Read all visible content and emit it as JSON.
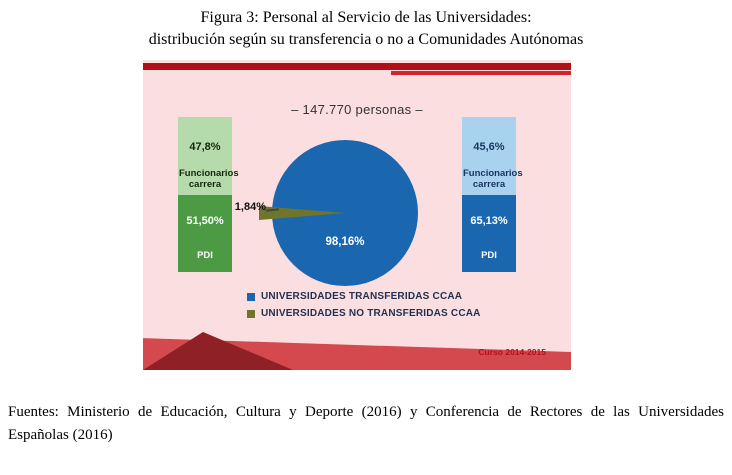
{
  "page": {
    "title_line1": "Figura 3: Personal al Servicio de las Universidades:",
    "title_line2": "distribución según su transferencia o no a Comunidades Autónomas",
    "caption": "Fuentes: Ministerio de Educación, Cultura y Deporte (2016) y Conferencia de Rectores de las Universidades Españolas (2016)"
  },
  "chart_data": {
    "type": "pie",
    "title": "Personal al Servicio de las Universidades: distribución según su transferencia o no a Comunidades Autónomas",
    "total_label": "– 147.770 personas –",
    "legend_position": "bottom",
    "slices": [
      {
        "label": "UNIVERSIDADES TRANSFERIDAS CCAA",
        "value": 98.16,
        "display": "98,16%",
        "color": "#1a67af"
      },
      {
        "label": "UNIVERSIDADES NO TRANSFERIDAS CCAA",
        "value": 1.84,
        "display": "1,84%",
        "color": "#6f752b"
      }
    ],
    "annotations": {
      "left_bar": {
        "series": "UNIVERSIDADES NO TRANSFERIDAS CCAA",
        "segments": [
          {
            "display": "47,8%",
            "label": "Funcionarios carrera",
            "color": "#b5dbac"
          },
          {
            "display": "51,50%",
            "label": "PDI",
            "color": "#4d9a45"
          }
        ]
      },
      "right_bar": {
        "series": "UNIVERSIDADES TRANSFERIDAS CCAA",
        "segments": [
          {
            "display": "45,6%",
            "label": "Funcionarios carrera",
            "color": "#a9d2ef"
          },
          {
            "display": "65,13%",
            "label": "PDI",
            "color": "#1a67af"
          }
        ]
      },
      "curso": "Curso 2014-2015"
    }
  }
}
